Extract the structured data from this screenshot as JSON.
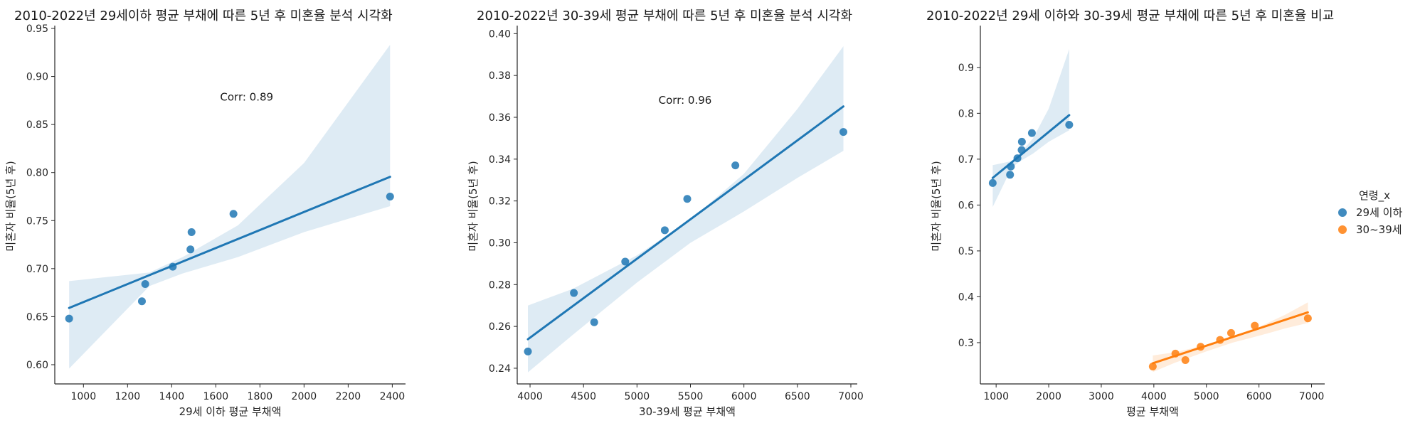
{
  "colors": {
    "series_29": "#1f77b4",
    "series_30": "#ff7f0e"
  },
  "chart_data": [
    {
      "type": "scatter",
      "title": "2010-2022년 29세이하 평균 부채에 따른 5년 후 미혼율 분석 시각화",
      "xlabel": "29세 이하 평균 부채액",
      "ylabel": "미혼자 비율(5년 후)",
      "xlim": [
        870,
        2460
      ],
      "ylim": [
        0.58,
        0.95
      ],
      "xticks": [
        1000,
        1200,
        1400,
        1600,
        1800,
        2000,
        2200,
        2400
      ],
      "yticks": [
        0.6,
        0.65,
        0.7,
        0.75,
        0.8,
        0.85,
        0.9,
        0.95
      ],
      "ytick_decimals": 2,
      "annotation": "Corr: 0.89",
      "annotation_pos": [
        1740,
        0.875
      ],
      "grid": false,
      "series": [
        {
          "color": "#1f77b4",
          "x": [
            935,
            1265,
            1280,
            1405,
            1485,
            1490,
            1680,
            2390
          ],
          "y": [
            0.648,
            0.666,
            0.684,
            0.702,
            0.72,
            0.738,
            0.757,
            0.775
          ],
          "fit": {
            "x0": 935,
            "x1": 2390
          },
          "band": {
            "x": [
              935,
              1300,
              1450,
              1700,
              2000,
              2390
            ],
            "upper": [
              0.687,
              0.696,
              0.712,
              0.745,
              0.81,
              0.933
            ],
            "lower": [
              0.596,
              0.682,
              0.695,
              0.712,
              0.738,
              0.765
            ]
          }
        }
      ]
    },
    {
      "type": "scatter",
      "title": "2010-2022년 30-39세 평균 부채에 따른 5년 후 미혼율 분석 시각화",
      "xlabel": "30-39세 평균 부채액",
      "ylabel": "미혼자 비율(5년 후)",
      "xlim": [
        3880,
        7060
      ],
      "ylim": [
        0.2325,
        0.4025
      ],
      "xticks": [
        4000,
        4500,
        5000,
        5500,
        6000,
        6500,
        7000
      ],
      "yticks": [
        0.24,
        0.26,
        0.28,
        0.3,
        0.32,
        0.34,
        0.36,
        0.38,
        0.4
      ],
      "ytick_decimals": 2,
      "annotation": "Corr: 0.96",
      "annotation_pos": [
        5450,
        0.3665
      ],
      "grid": false,
      "series": [
        {
          "color": "#1f77b4",
          "x": [
            3980,
            4410,
            4600,
            4890,
            5260,
            5470,
            5920,
            6930
          ],
          "y": [
            0.248,
            0.276,
            0.262,
            0.291,
            0.306,
            0.321,
            0.337,
            0.353
          ],
          "fit": {
            "x0": 3980,
            "x1": 6930
          },
          "band": {
            "x": [
              3980,
              4400,
              5000,
              5500,
              6000,
              6500,
              6930
            ],
            "upper": [
              0.27,
              0.278,
              0.294,
              0.311,
              0.333,
              0.364,
              0.394
            ],
            "lower": [
              0.238,
              0.256,
              0.281,
              0.3,
              0.315,
              0.331,
              0.344
            ]
          }
        }
      ]
    },
    {
      "type": "scatter",
      "title": "2010-2022년 29세 이하와 30-39세 평균 부채에 따른 5년 후 미혼율 비교",
      "xlabel": "평균 부채액",
      "ylabel": "미혼자 비율(5년 후)",
      "xlim": [
        700,
        7250
      ],
      "ylim": [
        0.21,
        0.985
      ],
      "xticks": [
        1000,
        2000,
        3000,
        4000,
        5000,
        6000,
        7000
      ],
      "yticks": [
        0.3,
        0.4,
        0.5,
        0.6,
        0.7,
        0.8,
        0.9
      ],
      "ytick_decimals": 1,
      "grid": false,
      "legend": {
        "title": "연령_x",
        "placement": "right"
      },
      "series": [
        {
          "name": "29세 이하",
          "color": "#1f77b4",
          "x": [
            935,
            1265,
            1280,
            1405,
            1485,
            1490,
            1680,
            2390
          ],
          "y": [
            0.648,
            0.666,
            0.684,
            0.702,
            0.72,
            0.738,
            0.757,
            0.775
          ],
          "fit": {
            "x0": 935,
            "x1": 2390,
            "y0": 0.659,
            "y1": 0.796
          },
          "band": {
            "x": [
              935,
              1300,
              1450,
              1700,
              2000,
              2390
            ],
            "upper": [
              0.687,
              0.696,
              0.712,
              0.745,
              0.81,
              0.94
            ],
            "lower": [
              0.596,
              0.682,
              0.695,
              0.712,
              0.738,
              0.763
            ]
          }
        },
        {
          "name": "30~39세",
          "color": "#ff7f0e",
          "x": [
            3980,
            4410,
            4600,
            4890,
            5260,
            5470,
            5920,
            6930
          ],
          "y": [
            0.248,
            0.276,
            0.262,
            0.291,
            0.306,
            0.321,
            0.337,
            0.353
          ],
          "fit": {
            "x0": 3980,
            "x1": 6930,
            "y0": 0.255,
            "y1": 0.366
          },
          "band": {
            "x": [
              3980,
              4400,
              5000,
              5500,
              6000,
              6500,
              6930
            ],
            "upper": [
              0.272,
              0.279,
              0.295,
              0.312,
              0.334,
              0.361,
              0.388
            ],
            "lower": [
              0.236,
              0.256,
              0.281,
              0.3,
              0.315,
              0.331,
              0.343
            ]
          }
        }
      ]
    }
  ]
}
